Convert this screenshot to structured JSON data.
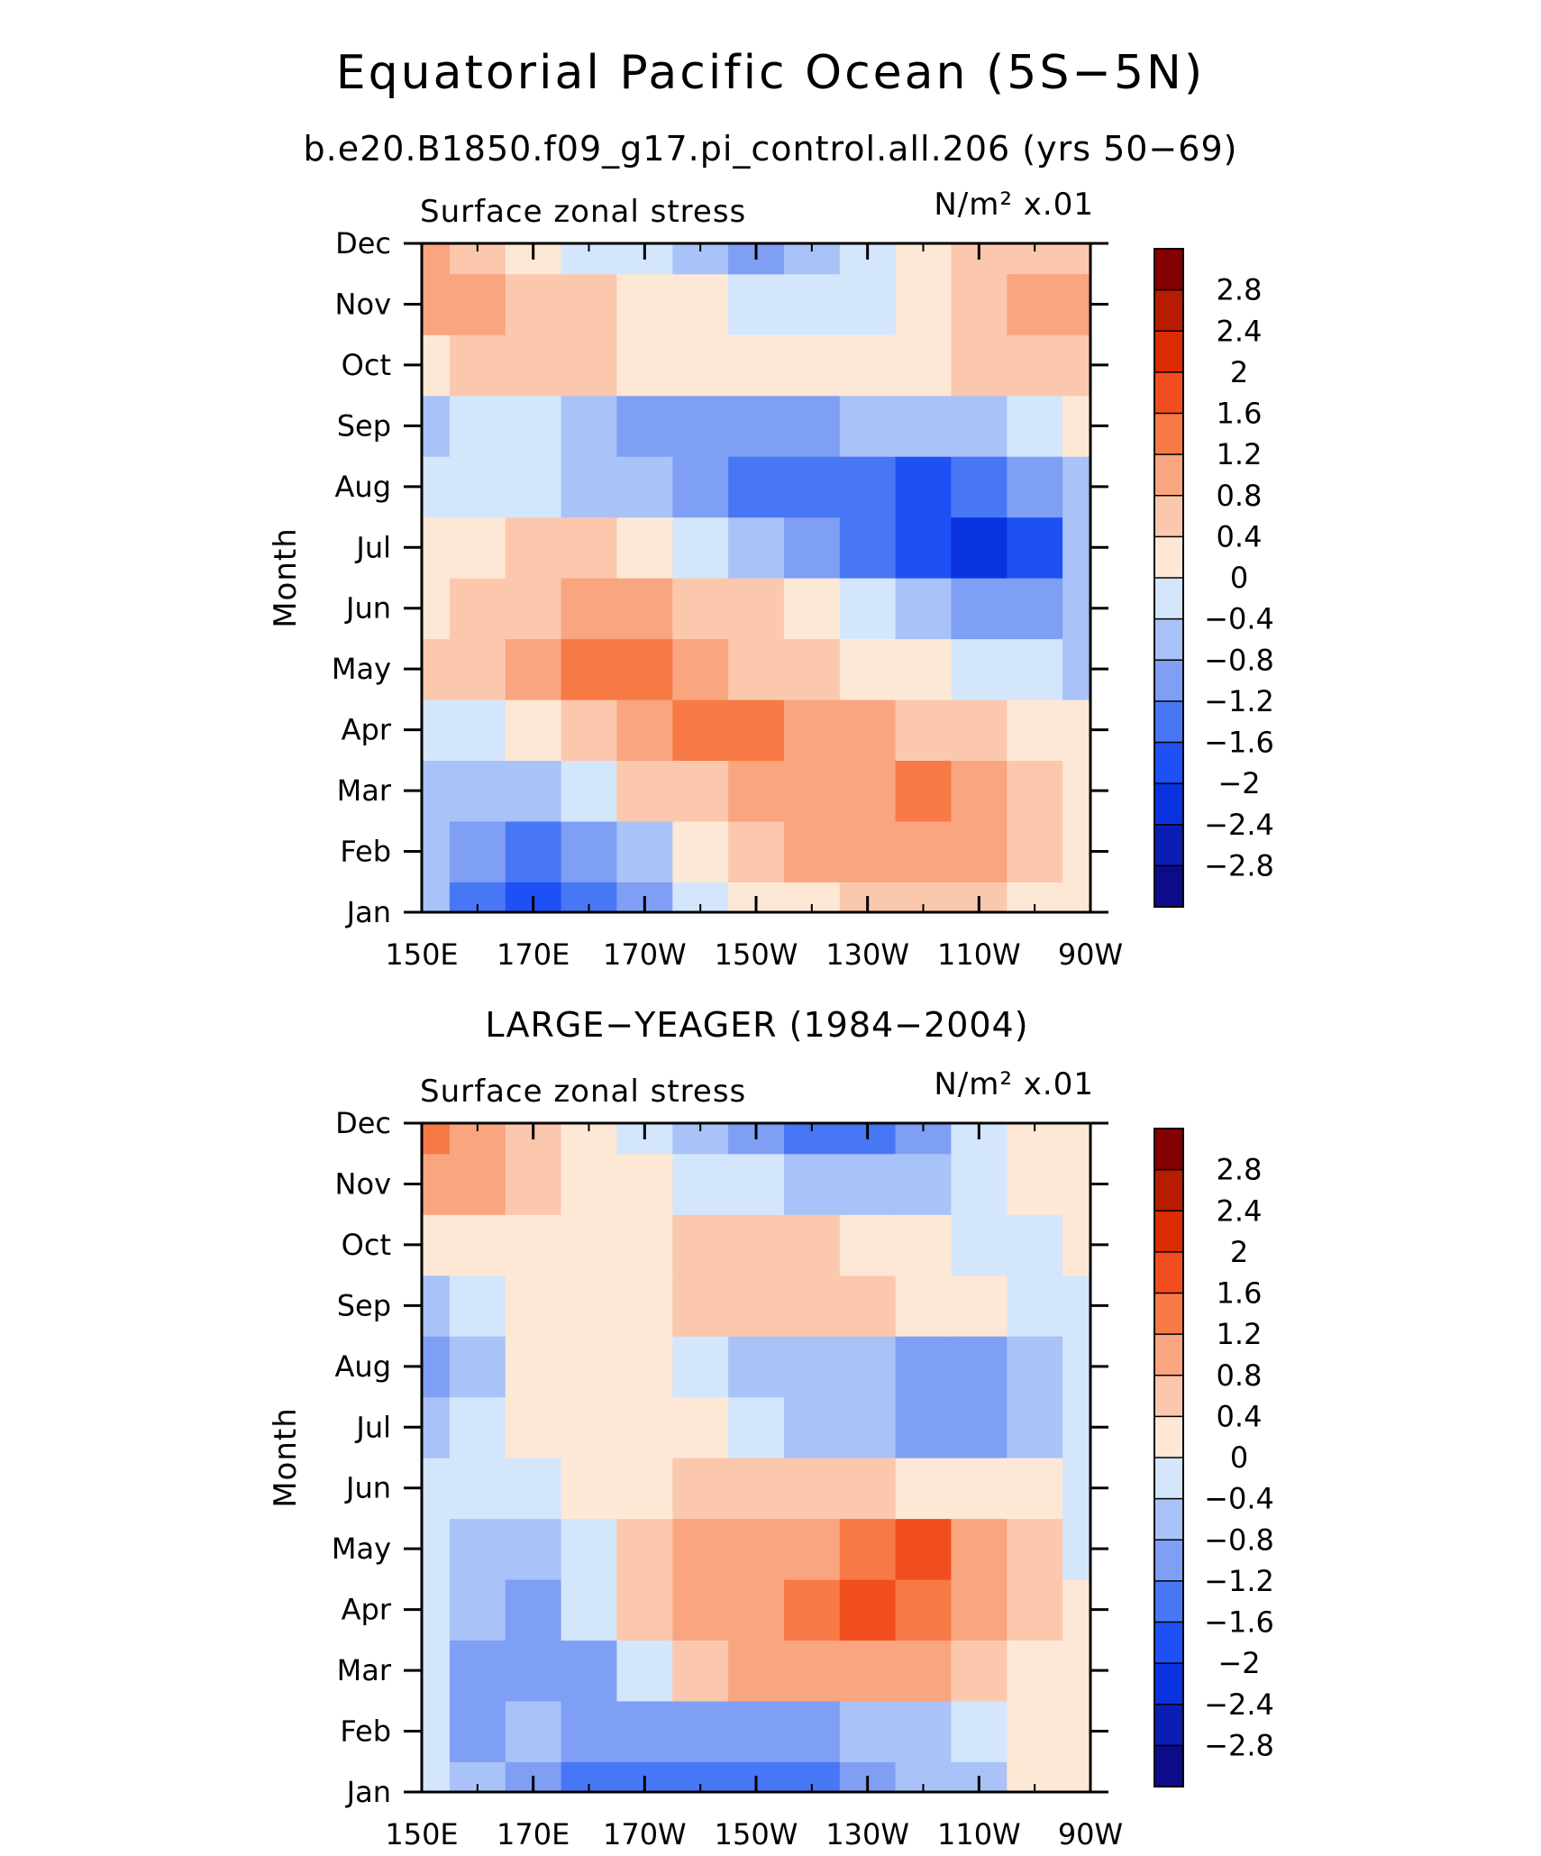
{
  "figure": {
    "title": "Equatorial Pacific Ocean (5S−5N)",
    "colormap": [
      "#0c0c8a",
      "#0a1db5",
      "#0a33e0",
      "#1f50f5",
      "#4877f5",
      "#7f9ff5",
      "#a9c2f7",
      "#d4e6fb",
      "#fde8d6",
      "#fbc8ad",
      "#f9a57f",
      "#f77a46",
      "#f24d1e",
      "#dc2b00",
      "#b71c00",
      "#850000"
    ],
    "cbar_ticks": [
      "2.8",
      "2.4",
      "2",
      "1.6",
      "1.2",
      "0.8",
      "0.4",
      "0",
      "−0.4",
      "−0.8",
      "−1.2",
      "−1.6",
      "−2",
      "−2.4",
      "−2.8"
    ]
  },
  "chart_data": [
    {
      "type": "heatmap",
      "subtitle": "b.e20.B1850.f09_g17.pi_control.all.206 (yrs 50−69)",
      "left_label": "Surface zonal stress",
      "unit_label": "N/m² x.01",
      "ylabel": "Month",
      "x_ticks": [
        "150E",
        "170E",
        "170W",
        "150W",
        "130W",
        "110W",
        "90W"
      ],
      "y_ticks": [
        "Jan",
        "Feb",
        "Mar",
        "Apr",
        "May",
        "Jun",
        "Jul",
        "Aug",
        "Sep",
        "Oct",
        "Nov",
        "Dec"
      ],
      "x": [
        150,
        160,
        170,
        180,
        190,
        200,
        210,
        220,
        230,
        240,
        250,
        260,
        270
      ],
      "months": [
        "Jan",
        "Feb",
        "Mar",
        "Apr",
        "May",
        "Jun",
        "Jul",
        "Aug",
        "Sep",
        "Oct",
        "Nov",
        "Dec"
      ],
      "values": [
        [
          -0.6,
          -1.3,
          -1.6,
          -1.2,
          -0.8,
          -0.3,
          0.0,
          0.3,
          0.5,
          0.6,
          0.4,
          0.1,
          0.0
        ],
        [
          -0.5,
          -1.1,
          -1.3,
          -0.9,
          -0.5,
          0.1,
          0.5,
          0.8,
          0.9,
          0.9,
          0.8,
          0.4,
          0.1
        ],
        [
          -0.4,
          -0.7,
          -0.5,
          -0.1,
          0.4,
          0.7,
          0.9,
          1.0,
          1.0,
          1.3,
          1.0,
          0.6,
          0.1
        ],
        [
          -0.1,
          -0.3,
          0.2,
          0.7,
          1.1,
          1.3,
          1.3,
          0.9,
          0.8,
          0.7,
          0.6,
          0.3,
          0.0
        ],
        [
          0.5,
          0.6,
          0.9,
          1.3,
          1.2,
          1.0,
          0.7,
          0.5,
          0.2,
          0.0,
          -0.1,
          -0.3,
          -0.4
        ],
        [
          0.3,
          0.4,
          0.6,
          0.9,
          0.9,
          0.6,
          0.4,
          0.2,
          -0.1,
          -0.5,
          -0.9,
          -1.1,
          -0.4
        ],
        [
          0.1,
          0.3,
          0.5,
          0.4,
          0.1,
          -0.2,
          -0.5,
          -0.8,
          -1.3,
          -1.8,
          -2.1,
          -1.6,
          -0.6
        ],
        [
          -0.1,
          -0.2,
          -0.3,
          -0.4,
          -0.7,
          -1.0,
          -1.2,
          -1.4,
          -1.5,
          -1.6,
          -1.4,
          -1.0,
          -0.5
        ],
        [
          -0.5,
          -0.3,
          -0.3,
          -0.5,
          -0.8,
          -1.0,
          -0.9,
          -0.8,
          -0.7,
          -0.6,
          -0.5,
          -0.2,
          0.1
        ],
        [
          0.2,
          0.4,
          0.5,
          0.4,
          0.2,
          0.1,
          0.0,
          0.0,
          0.1,
          0.3,
          0.6,
          0.7,
          0.6
        ],
        [
          0.9,
          1.0,
          0.7,
          0.5,
          0.3,
          0.0,
          -0.2,
          -0.3,
          -0.2,
          0.0,
          0.7,
          0.8,
          0.8
        ],
        [
          0.8,
          0.5,
          0.2,
          -0.1,
          -0.3,
          -0.6,
          -0.9,
          -0.6,
          -0.2,
          0.1,
          0.7,
          0.7,
          0.6
        ]
      ],
      "zlim": [
        -3,
        3
      ]
    },
    {
      "type": "heatmap",
      "subtitle": "LARGE−YEAGER (1984−2004)",
      "left_label": "Surface zonal stress",
      "unit_label": "N/m² x.01",
      "ylabel": "Month",
      "x_ticks": [
        "150E",
        "170E",
        "170W",
        "150W",
        "130W",
        "110W",
        "90W"
      ],
      "y_ticks": [
        "Jan",
        "Feb",
        "Mar",
        "Apr",
        "May",
        "Jun",
        "Jul",
        "Aug",
        "Sep",
        "Oct",
        "Nov",
        "Dec"
      ],
      "x": [
        150,
        160,
        170,
        180,
        190,
        200,
        210,
        220,
        230,
        240,
        250,
        260,
        270
      ],
      "months": [
        "Jan",
        "Feb",
        "Mar",
        "Apr",
        "May",
        "Jun",
        "Jul",
        "Aug",
        "Sep",
        "Oct",
        "Nov",
        "Dec"
      ],
      "values": [
        [
          -0.3,
          -0.6,
          -0.8,
          -1.2,
          -1.5,
          -1.3,
          -1.2,
          -1.5,
          -1.1,
          -0.7,
          -0.4,
          0.1,
          0.2
        ],
        [
          -0.3,
          -0.9,
          -0.7,
          -0.9,
          -1.1,
          -1.0,
          -1.0,
          -0.8,
          -0.6,
          -0.4,
          -0.2,
          0.1,
          0.2
        ],
        [
          -0.2,
          -0.9,
          -1.0,
          -0.8,
          -0.3,
          0.5,
          0.8,
          0.9,
          0.9,
          0.8,
          0.6,
          0.3,
          0.1
        ],
        [
          -0.2,
          -0.6,
          -0.8,
          -0.2,
          0.5,
          0.9,
          1.1,
          1.3,
          1.5,
          1.4,
          1.0,
          0.5,
          0.1
        ],
        [
          -0.2,
          -0.5,
          -0.6,
          -0.1,
          0.5,
          0.8,
          1.0,
          1.0,
          1.3,
          1.5,
          0.9,
          0.4,
          -0.1
        ],
        [
          -0.2,
          -0.3,
          -0.2,
          0.0,
          0.3,
          0.4,
          0.5,
          0.5,
          0.4,
          0.3,
          0.1,
          0.0,
          -0.2
        ],
        [
          -0.4,
          -0.3,
          0.0,
          0.1,
          0.1,
          0.0,
          -0.2,
          -0.4,
          -0.5,
          -0.8,
          -0.9,
          -0.7,
          -0.3
        ],
        [
          -0.8,
          -0.4,
          0.0,
          0.1,
          0.0,
          -0.2,
          -0.5,
          -0.6,
          -0.5,
          -0.8,
          -1.0,
          -0.6,
          -0.2
        ],
        [
          -0.5,
          -0.3,
          0.0,
          0.2,
          0.3,
          0.4,
          0.5,
          0.6,
          0.5,
          0.3,
          0.0,
          -0.3,
          -0.2
        ],
        [
          0.3,
          0.1,
          0.1,
          0.1,
          0.3,
          0.6,
          0.7,
          0.6,
          0.3,
          0.1,
          -0.1,
          -0.1,
          0.2
        ],
        [
          1.0,
          0.9,
          0.4,
          0.1,
          0.0,
          -0.2,
          -0.3,
          -0.5,
          -0.6,
          -0.5,
          -0.2,
          0.0,
          0.2
        ],
        [
          1.3,
          1.1,
          0.6,
          0.1,
          -0.3,
          -0.7,
          -1.1,
          -1.4,
          -1.2,
          -0.8,
          -0.3,
          0.0,
          0.2
        ]
      ],
      "zlim": [
        -3,
        3
      ]
    }
  ]
}
